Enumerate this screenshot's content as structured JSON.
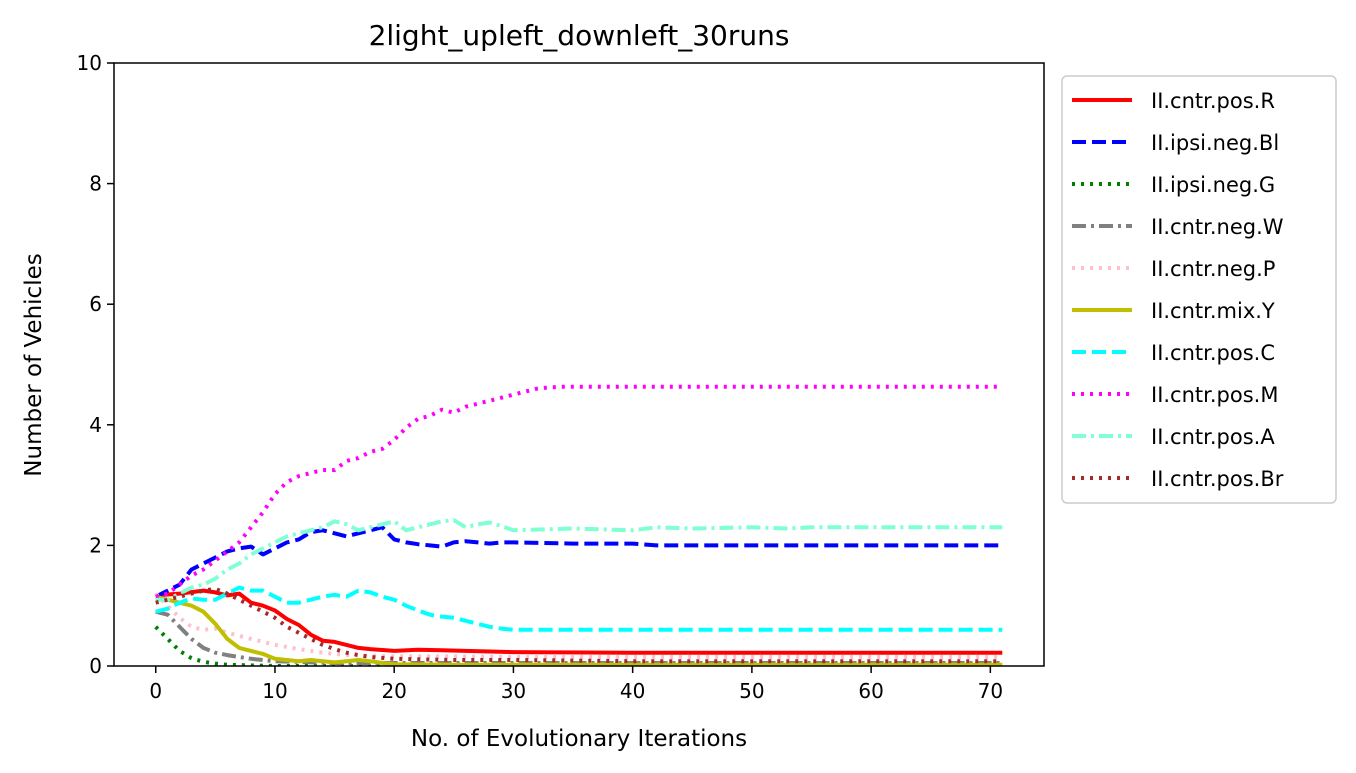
{
  "chart_data": {
    "type": "line",
    "title": "2light_upleft_downleft_30runs",
    "xlabel": "No. of Evolutionary Iterations",
    "ylabel": "Number of Vehicles",
    "xlim": [
      -3.5,
      74.5
    ],
    "ylim": [
      0,
      10
    ],
    "xticks": [
      0,
      10,
      20,
      30,
      40,
      50,
      60,
      70
    ],
    "yticks": [
      0,
      2,
      4,
      6,
      8,
      10
    ],
    "grid": false,
    "legend_position": "outside-right",
    "series": [
      {
        "name": "II.cntr.pos.R",
        "color": "#ff0000",
        "style": "solid",
        "x": [
          0,
          2,
          4,
          5,
          6,
          7,
          8,
          9,
          10,
          11,
          12,
          13,
          14,
          15,
          16,
          17,
          18,
          20,
          22,
          24,
          26,
          28,
          30,
          40,
          50,
          60,
          71
        ],
        "y": [
          1.17,
          1.2,
          1.25,
          1.22,
          1.17,
          1.2,
          1.05,
          1.0,
          0.92,
          0.78,
          0.68,
          0.52,
          0.42,
          0.4,
          0.35,
          0.3,
          0.28,
          0.25,
          0.27,
          0.26,
          0.25,
          0.24,
          0.23,
          0.22,
          0.22,
          0.22,
          0.22
        ]
      },
      {
        "name": "II.ipsi.neg.Bl",
        "color": "#0000ff",
        "style": "dashed",
        "x": [
          0,
          1,
          2,
          3,
          4,
          5,
          6,
          7,
          8,
          9,
          10,
          11,
          12,
          13,
          14,
          15,
          16,
          17,
          18,
          19,
          20,
          21,
          22,
          23,
          24,
          25,
          26,
          27,
          28,
          29,
          30,
          35,
          40,
          42,
          50,
          60,
          71
        ],
        "y": [
          1.15,
          1.25,
          1.35,
          1.6,
          1.7,
          1.8,
          1.9,
          1.95,
          1.98,
          1.85,
          1.95,
          2.05,
          2.1,
          2.22,
          2.25,
          2.2,
          2.15,
          2.2,
          2.25,
          2.3,
          2.1,
          2.05,
          2.02,
          2.0,
          1.98,
          2.05,
          2.07,
          2.05,
          2.03,
          2.05,
          2.05,
          2.03,
          2.03,
          2.0,
          2.0,
          2.0,
          2.0
        ]
      },
      {
        "name": "II.ipsi.neg.G",
        "color": "#008000",
        "style": "dotted",
        "x": [
          0,
          1,
          2,
          3,
          4,
          5,
          6,
          8,
          10,
          15,
          20,
          30,
          40,
          50,
          60,
          71
        ],
        "y": [
          0.65,
          0.45,
          0.25,
          0.13,
          0.07,
          0.04,
          0.02,
          0.01,
          0.0,
          0.0,
          0.0,
          0.0,
          0.0,
          0.0,
          0.0,
          0.0
        ]
      },
      {
        "name": "II.cntr.neg.W",
        "color": "#808080",
        "style": "dashdot",
        "x": [
          0,
          1,
          2,
          3,
          4,
          5,
          6,
          7,
          8,
          9,
          10,
          15,
          20,
          30,
          40,
          50,
          60,
          71
        ],
        "y": [
          0.9,
          0.85,
          0.65,
          0.45,
          0.3,
          0.22,
          0.18,
          0.15,
          0.12,
          0.1,
          0.08,
          0.05,
          0.05,
          0.05,
          0.05,
          0.05,
          0.05,
          0.05
        ]
      },
      {
        "name": "II.cntr.neg.P",
        "color": "#ffc0cb",
        "style": "dotted",
        "x": [
          0,
          1,
          2,
          3,
          4,
          5,
          6,
          8,
          10,
          12,
          14,
          16,
          18,
          20,
          25,
          30,
          40,
          50,
          60,
          71
        ],
        "y": [
          1.2,
          1.0,
          0.8,
          0.65,
          0.6,
          0.62,
          0.55,
          0.45,
          0.35,
          0.28,
          0.22,
          0.18,
          0.17,
          0.16,
          0.16,
          0.15,
          0.15,
          0.15,
          0.15,
          0.15
        ]
      },
      {
        "name": "II.cntr.mix.Y",
        "color": "#bfbf00",
        "style": "solid",
        "x": [
          0,
          1,
          2,
          3,
          4,
          5,
          6,
          7,
          8,
          9,
          10,
          11,
          12,
          13,
          14,
          15,
          16,
          17,
          18,
          19,
          20,
          25,
          30,
          40,
          50,
          60,
          71
        ],
        "y": [
          1.15,
          1.1,
          1.05,
          1.0,
          0.9,
          0.7,
          0.45,
          0.3,
          0.25,
          0.2,
          0.12,
          0.1,
          0.08,
          0.1,
          0.08,
          0.06,
          0.08,
          0.1,
          0.08,
          0.05,
          0.03,
          0.02,
          0.02,
          0.02,
          0.02,
          0.02,
          0.02
        ]
      },
      {
        "name": "II.cntr.pos.C",
        "color": "#00ffff",
        "style": "dashed",
        "x": [
          0,
          1,
          2,
          3,
          4,
          5,
          6,
          7,
          8,
          9,
          10,
          11,
          12,
          13,
          14,
          15,
          16,
          17,
          18,
          19,
          20,
          21,
          22,
          23,
          24,
          25,
          26,
          27,
          28,
          29,
          30,
          35,
          40,
          50,
          60,
          71
        ],
        "y": [
          0.9,
          0.95,
          1.05,
          1.12,
          1.1,
          1.1,
          1.2,
          1.3,
          1.25,
          1.25,
          1.15,
          1.05,
          1.05,
          1.1,
          1.15,
          1.18,
          1.15,
          1.25,
          1.22,
          1.15,
          1.1,
          1.0,
          0.92,
          0.85,
          0.82,
          0.8,
          0.75,
          0.7,
          0.65,
          0.62,
          0.6,
          0.6,
          0.6,
          0.6,
          0.6,
          0.6
        ]
      },
      {
        "name": "II.cntr.pos.M",
        "color": "#ff00ff",
        "style": "dotted",
        "x": [
          0,
          1,
          2,
          3,
          4,
          5,
          6,
          7,
          8,
          9,
          10,
          11,
          12,
          13,
          14,
          15,
          16,
          17,
          18,
          19,
          20,
          21,
          22,
          23,
          24,
          25,
          26,
          27,
          28,
          29,
          30,
          31,
          32,
          33,
          34,
          35,
          40,
          50,
          60,
          71
        ],
        "y": [
          1.15,
          1.2,
          1.35,
          1.5,
          1.6,
          1.75,
          1.9,
          2.05,
          2.3,
          2.55,
          2.85,
          3.05,
          3.15,
          3.2,
          3.25,
          3.25,
          3.4,
          3.45,
          3.55,
          3.6,
          3.75,
          3.95,
          4.1,
          4.15,
          4.25,
          4.2,
          4.3,
          4.35,
          4.4,
          4.45,
          4.5,
          4.55,
          4.6,
          4.62,
          4.63,
          4.63,
          4.63,
          4.63,
          4.63,
          4.63
        ]
      },
      {
        "name": "II.cntr.pos.A",
        "color": "#7fffd4",
        "style": "dashdot",
        "x": [
          0,
          1,
          2,
          3,
          4,
          5,
          6,
          7,
          8,
          9,
          10,
          11,
          12,
          13,
          14,
          15,
          16,
          17,
          18,
          19,
          20,
          21,
          22,
          23,
          24,
          25,
          26,
          27,
          28,
          29,
          30,
          35,
          40,
          42,
          45,
          50,
          53,
          55,
          60,
          65,
          71
        ],
        "y": [
          1.1,
          1.1,
          1.2,
          1.3,
          1.35,
          1.45,
          1.6,
          1.7,
          1.85,
          1.95,
          2.05,
          2.15,
          2.2,
          2.25,
          2.3,
          2.4,
          2.35,
          2.25,
          2.3,
          2.35,
          2.4,
          2.25,
          2.3,
          2.35,
          2.4,
          2.42,
          2.3,
          2.35,
          2.38,
          2.32,
          2.25,
          2.28,
          2.25,
          2.3,
          2.28,
          2.3,
          2.28,
          2.3,
          2.3,
          2.3,
          2.3
        ]
      },
      {
        "name": "II.cntr.pos.Br",
        "color": "#a52a2a",
        "style": "dotted",
        "x": [
          0,
          1,
          2,
          3,
          4,
          5,
          6,
          7,
          8,
          9,
          10,
          11,
          12,
          13,
          14,
          15,
          16,
          17,
          18,
          20,
          25,
          30,
          40,
          50,
          60,
          71
        ],
        "y": [
          1.05,
          1.1,
          1.15,
          1.2,
          1.25,
          1.28,
          1.2,
          1.1,
          1.0,
          0.9,
          0.8,
          0.65,
          0.55,
          0.45,
          0.35,
          0.28,
          0.22,
          0.18,
          0.15,
          0.12,
          0.1,
          0.1,
          0.08,
          0.08,
          0.08,
          0.08
        ]
      }
    ]
  }
}
